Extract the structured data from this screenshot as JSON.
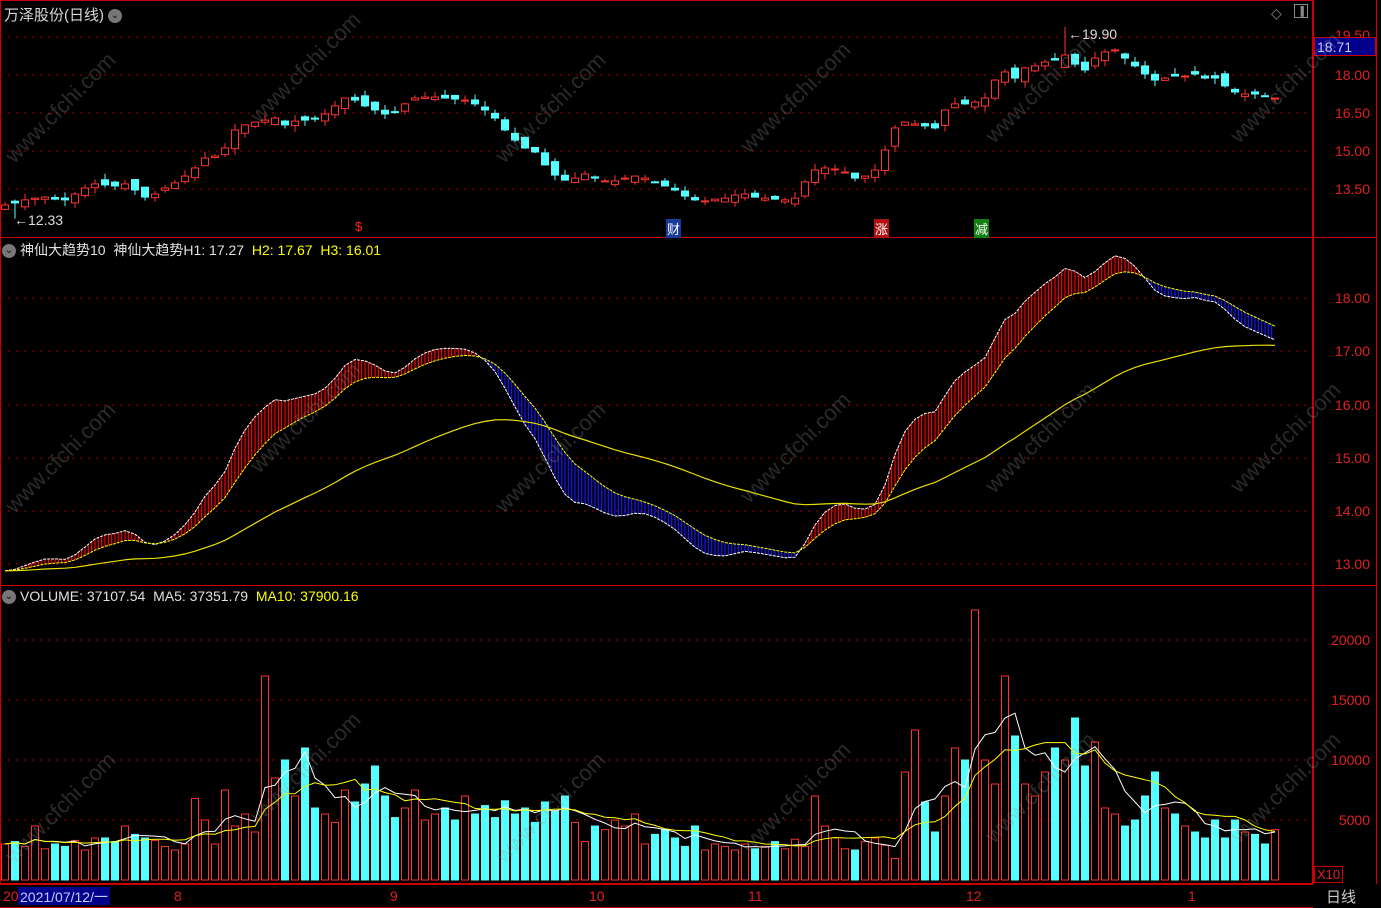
{
  "header": {
    "title": "万泽股份(日线)",
    "current_price": "18.71",
    "high_annot": "19.90",
    "low_annot": "12.33"
  },
  "price_axis": [
    "18.00",
    "16.50",
    "15.00",
    "13.50"
  ],
  "price_axis_top_partial": "19.50",
  "indicator": {
    "name": "神仙大趋势10",
    "h1": "神仙大趋势H1: 17.27",
    "h2": "H2: 17.67",
    "h3": "H3: 16.01",
    "axis": [
      "18.00",
      "17.00",
      "16.00",
      "15.00",
      "14.00",
      "13.00"
    ]
  },
  "volume": {
    "label": "VOLUME: 37107.54",
    "ma5": "MA5: 37351.79",
    "ma10": "MA10: 37900.16",
    "axis": [
      "20000",
      "15000",
      "10000",
      "5000"
    ],
    "unit": "X10"
  },
  "markers": [
    {
      "text": "$",
      "color": "#ff2020",
      "bg": "transparent"
    },
    {
      "text": "财",
      "color": "#ffffff",
      "bg": "#1a3a9a"
    },
    {
      "text": "涨",
      "color": "#ffffff",
      "bg": "#b01010"
    },
    {
      "text": "减",
      "color": "#ffffff",
      "bg": "#108010"
    }
  ],
  "date_axis": {
    "selected": "2021/07/12/一",
    "prefix": "20",
    "months": [
      "8",
      "9",
      "10",
      "11",
      "12",
      "1"
    ]
  },
  "period_label": "日线",
  "watermark": "www.cfchi.com",
  "colors": {
    "up": "#ff3030",
    "down": "#54ffff",
    "ma_yellow": "#ffff00",
    "white": "#ffffff",
    "fill_up": "#ff0000",
    "fill_down": "#1515ff"
  },
  "chart_data": {
    "type": "candlestick",
    "title": "万泽股份(日线)",
    "start_date": "2021/07/12",
    "close": [
      12.87,
      12.95,
      13.07,
      13.14,
      13.18,
      13.1,
      13.07,
      13.3,
      13.54,
      13.7,
      13.66,
      13.62,
      13.7,
      13.46,
      13.18,
      13.3,
      13.54,
      13.74,
      14.01,
      14.33,
      14.72,
      14.8,
      15.12,
      15.83,
      16.03,
      16.14,
      16.22,
      16.3,
      16.03,
      16.18,
      16.22,
      16.26,
      16.46,
      16.78,
      17.09,
      17.01,
      16.78,
      16.62,
      16.46,
      16.54,
      16.86,
      17.09,
      17.13,
      17.13,
      17.09,
      17.05,
      17.01,
      16.86,
      16.62,
      16.3,
      15.83,
      15.43,
      15.12,
      14.96,
      14.45,
      14.05,
      13.85,
      13.93,
      14.09,
      13.93,
      13.82,
      13.82,
      13.93,
      14.01,
      13.93,
      13.78,
      13.62,
      13.46,
      13.22,
      13.07,
      13.03,
      13.1,
      13.14,
      13.26,
      13.3,
      13.18,
      13.14,
      13.1,
      13.07,
      13.14,
      13.78,
      14.25,
      14.33,
      14.29,
      14.17,
      13.93,
      14.01,
      14.25,
      15.04,
      15.91,
      16.14,
      16.07,
      15.99,
      15.91,
      16.62,
      16.86,
      16.86,
      16.93,
      17.09,
      17.8,
      18.12,
      17.88,
      18.28,
      18.36,
      18.51,
      18.59,
      18.79,
      18.43,
      18.2,
      18.67,
      18.91,
      18.99,
      18.67,
      18.36,
      18.04,
      17.8,
      17.88,
      17.96,
      17.96,
      18.04,
      17.88,
      17.88,
      17.57,
      17.33,
      17.25,
      17.25,
      17.17,
      17.09
    ],
    "volume": [
      3000,
      3200,
      2800,
      4500,
      2600,
      3000,
      2800,
      3300,
      2500,
      3500,
      3500,
      3200,
      4500,
      3800,
      3500,
      3300,
      2800,
      2500,
      3000,
      6800,
      5000,
      3000,
      7500,
      4500,
      5500,
      4000,
      17000,
      8500,
      10000,
      7000,
      11000,
      6000,
      5500,
      4800,
      7500,
      6500,
      8000,
      9500,
      7000,
      5200,
      6000,
      7500,
      5000,
      5500,
      6000,
      5000,
      7000,
      5500,
      6200,
      5200,
      6600,
      5500,
      6000,
      4800,
      6500,
      5800,
      7000,
      4800,
      3200,
      4500,
      4200,
      5000,
      4500,
      5500,
      3000,
      3800,
      4200,
      3500,
      2800,
      4500,
      2500,
      3000,
      2800,
      2500,
      3000,
      2600,
      2800,
      3200,
      2600,
      3400,
      2800,
      7000,
      4500,
      3500,
      2600,
      2500,
      3200,
      3500,
      2900,
      1800,
      9000,
      12500,
      6500,
      4000,
      7000,
      11000,
      10000,
      22500,
      10000,
      8000,
      17000,
      12000,
      8000,
      7000,
      9000,
      11000,
      10000,
      13500,
      9500,
      11500,
      6000,
      5500,
      4500,
      5000,
      7000,
      9000,
      6000,
      5500,
      4500,
      4000,
      3500,
      5000,
      3500,
      5000,
      4000,
      3800,
      3000,
      4200
    ],
    "high": 19.9,
    "low": 12.33,
    "ylim_price": [
      13.0,
      19.5
    ],
    "ylim_indicator": [
      12.7,
      18.8
    ],
    "ylim_volume": [
      0,
      23000
    ]
  }
}
